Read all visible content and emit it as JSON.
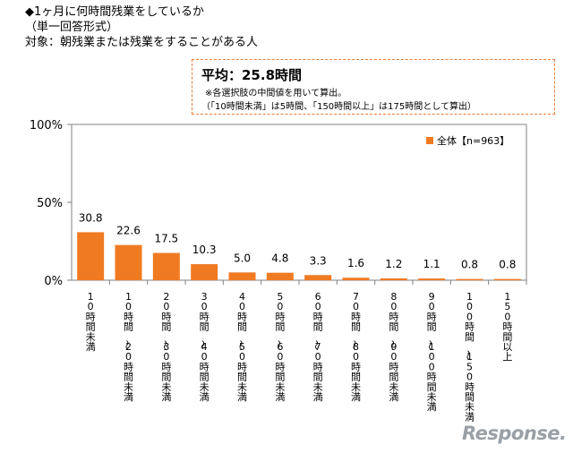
{
  "header": {
    "line1": "◆1ヶ月に何時間残業をしているか",
    "line2": "（単一回答形式）",
    "line3": "対象：朝残業または残業をすることがある人"
  },
  "average_box": {
    "title": "平均：25.8時間",
    "note1": "※各選択肢の中間値を用いて算出。",
    "note2": "（「10時間未満」は5時間、「150時間以上」は175時間として算出）"
  },
  "watermark": "Response.",
  "colors": {
    "bar": "#f07a22",
    "axis": "#808080",
    "box_border": "#e8793a"
  },
  "chart_data": {
    "type": "bar",
    "categories": [
      "10時間未満",
      "10時間〜20時間未満",
      "20時間〜30時間未満",
      "30時間〜40時間未満",
      "40時間〜50時間未満",
      "50時間〜60時間未満",
      "60時間〜70時間未満",
      "70時間〜80時間未満",
      "80時間〜90時間未満",
      "90時間〜100時間未満",
      "100時間〜150時間未満",
      "150時間以上"
    ],
    "series": [
      {
        "name": "全体【n=963】",
        "values": [
          30.8,
          22.6,
          17.5,
          10.3,
          5.0,
          4.8,
          3.3,
          1.6,
          1.2,
          1.1,
          0.8,
          0.8
        ]
      }
    ],
    "value_labels": [
      "30.8",
      "22.6",
      "17.5",
      "10.3",
      "5.0",
      "4.8",
      "3.3",
      "1.6",
      "1.2",
      "1.1",
      "0.8",
      "0.8"
    ],
    "y_ticks": [
      "0%",
      "50%",
      "100%"
    ],
    "y_tick_values": [
      0,
      50,
      100
    ],
    "ylim": [
      0,
      100
    ],
    "grid": false,
    "legend_position": "top-right"
  }
}
